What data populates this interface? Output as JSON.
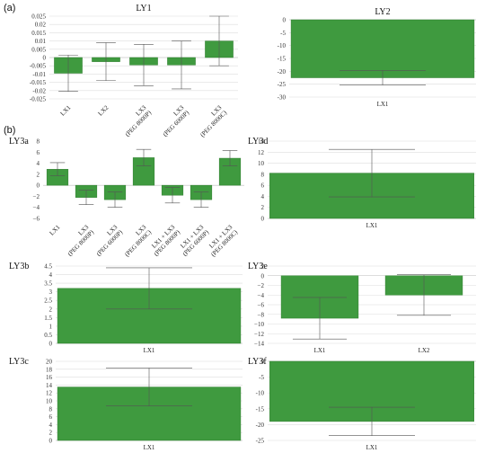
{
  "section_labels": {
    "a": "(a)",
    "b": "(b)"
  },
  "colors": {
    "bar": "#3f9a3f",
    "bar_stroke": "#2e7d2e",
    "grid": "#dddddd",
    "error": "#555555"
  },
  "chart_data": [
    {
      "id": "ly1",
      "type": "bar",
      "title": "LY1",
      "categories": [
        "LX1",
        "LX2",
        "LX3\n(PEG 8000P)",
        "LX3\n(PEG 6000P)",
        "LX3\n(PEG 8000C)"
      ],
      "values": [
        -0.0095,
        -0.0025,
        -0.0045,
        -0.0045,
        0.01
      ],
      "errors": [
        0.011,
        0.0115,
        0.0125,
        0.0145,
        0.015
      ],
      "yticks": [
        0.025,
        0.02,
        0.015,
        0.01,
        0.005,
        0,
        -0.005,
        -0.01,
        -0.015,
        -0.02,
        -0.025
      ],
      "ytick_labels": [
        "0.025",
        "0.02",
        "0.015",
        "0.01",
        "0.005",
        "0",
        "-0.005",
        "-0.01",
        "-0.015",
        "-0.02",
        "-0.025"
      ],
      "ylim": [
        -0.025,
        0.025
      ],
      "grid": true
    },
    {
      "id": "ly2",
      "type": "bar",
      "title": "LY2",
      "categories": [
        "LX1"
      ],
      "values": [
        -22.5
      ],
      "errors": [
        2.8
      ],
      "yticks": [
        0,
        -5,
        -10,
        -15,
        -20,
        -25,
        -30
      ],
      "ytick_labels": [
        "0",
        "-5",
        "-10",
        "-15",
        "-20",
        "-25",
        "-30"
      ],
      "ylim": [
        -30,
        0
      ],
      "grid": true
    },
    {
      "id": "ly3a",
      "type": "bar",
      "title": "LY3a",
      "categories": [
        "LX1",
        "LX3\n(PEG 8000P)",
        "LX3\n(PEG 6000P)",
        "LX3\n(PEG 8000C)",
        "LX1 + LX3\n(PEG 8000P)",
        "LX1 + LX3\n(PEG 6000P)",
        "LX1 + LX3\n(PEG 8000C)"
      ],
      "values": [
        2.9,
        -2.2,
        -2.6,
        5.0,
        -1.8,
        -2.6,
        4.9
      ],
      "errors": [
        1.2,
        1.3,
        1.4,
        1.5,
        1.4,
        1.4,
        1.4
      ],
      "yticks": [
        8,
        6,
        4,
        2,
        0,
        -2,
        -4,
        -6
      ],
      "ytick_labels": [
        "8",
        "6",
        "4",
        "2",
        "0",
        "−2",
        "−4",
        "−6"
      ],
      "ylim": [
        -6,
        8
      ],
      "grid": false
    },
    {
      "id": "ly3d",
      "type": "bar",
      "title": "LY3d",
      "categories": [
        "LX1"
      ],
      "values": [
        8.2
      ],
      "errors": [
        4.3
      ],
      "yticks": [
        14,
        12,
        10,
        8,
        6,
        4,
        2,
        0
      ],
      "ytick_labels": [
        "14",
        "12",
        "10",
        "8",
        "6",
        "4",
        "2",
        "0"
      ],
      "ylim": [
        0,
        14
      ],
      "grid": true
    },
    {
      "id": "ly3b",
      "type": "bar",
      "title": "LY3b",
      "categories": [
        "LX1"
      ],
      "values": [
        3.2
      ],
      "errors": [
        1.2
      ],
      "yticks": [
        4.5,
        4,
        3.5,
        3,
        2.5,
        2,
        1.5,
        1,
        0.5,
        0
      ],
      "ytick_labels": [
        "4.5",
        "4",
        "3.5",
        "3",
        "2.5",
        "2",
        "1.5",
        "1",
        "0.5",
        "0"
      ],
      "ylim": [
        0,
        4.5
      ],
      "grid": true
    },
    {
      "id": "ly3e",
      "type": "bar",
      "title": "LY3e",
      "categories": [
        "LX1",
        "LX2"
      ],
      "values": [
        -8.8,
        -4.0
      ],
      "errors": [
        4.3,
        4.2
      ],
      "yticks": [
        2,
        0,
        -2,
        -4,
        -6,
        -8,
        -10,
        -12,
        -14
      ],
      "ytick_labels": [
        "2",
        "0",
        "−2",
        "−4",
        "−6",
        "−8",
        "−10",
        "−12",
        "−14"
      ],
      "ylim": [
        -14,
        2
      ],
      "grid": true
    },
    {
      "id": "ly3c",
      "type": "bar",
      "title": "LY3c",
      "categories": [
        "LX1"
      ],
      "values": [
        13.5
      ],
      "errors": [
        4.8
      ],
      "yticks": [
        20,
        18,
        16,
        14,
        12,
        10,
        8,
        6,
        4,
        2,
        0
      ],
      "ytick_labels": [
        "20",
        "18",
        "16",
        "14",
        "12",
        "10",
        "8",
        "6",
        "4",
        "2",
        "0"
      ],
      "ylim": [
        0,
        20
      ],
      "grid": true
    },
    {
      "id": "ly3f",
      "type": "bar",
      "title": "LY3f",
      "categories": [
        "LX1"
      ],
      "values": [
        -19.0
      ],
      "errors": [
        4.5
      ],
      "yticks": [
        0,
        -5,
        -10,
        -15,
        -20,
        -25
      ],
      "ytick_labels": [
        "0",
        "-5",
        "-10",
        "-15",
        "-20",
        "-25"
      ],
      "ylim": [
        -25,
        0
      ],
      "grid": true
    }
  ]
}
